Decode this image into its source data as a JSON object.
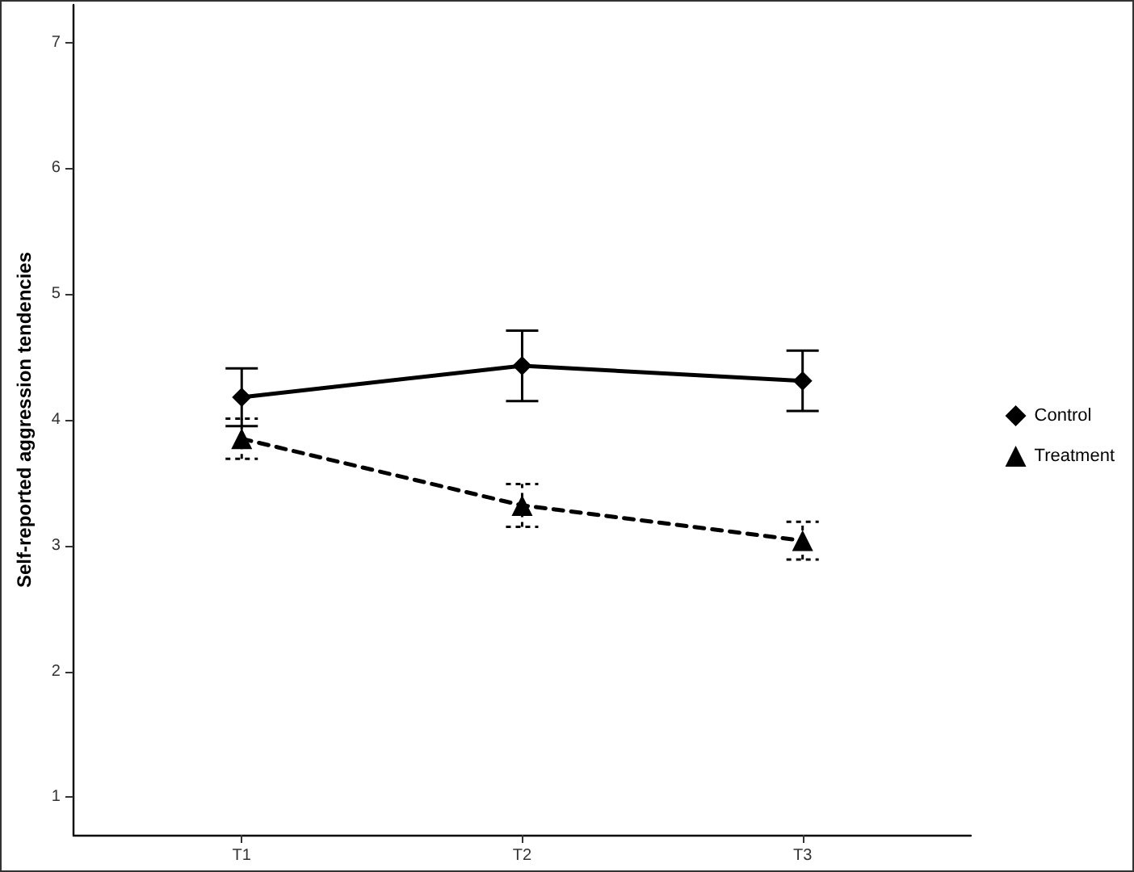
{
  "chart_data": {
    "type": "line",
    "ylabel": "Self-reported aggression tendencies",
    "categories": [
      "T1",
      "T2",
      "T3"
    ],
    "series": [
      {
        "name": "Control",
        "color": "#000000",
        "marker": "diamond",
        "line_style": "solid",
        "values": [
          4.18,
          4.43,
          4.31
        ],
        "errors": [
          0.23,
          0.28,
          0.24
        ]
      },
      {
        "name": "Treatment",
        "color": "#000000",
        "marker": "triangle",
        "line_style": "dashed",
        "values": [
          3.85,
          3.32,
          3.04
        ],
        "errors": [
          0.16,
          0.17,
          0.15
        ]
      }
    ],
    "ylim": [
      0.7,
      7.3
    ],
    "yticks": [
      1,
      2,
      3,
      4,
      5,
      6,
      7
    ],
    "grid": false,
    "legend": "right"
  }
}
